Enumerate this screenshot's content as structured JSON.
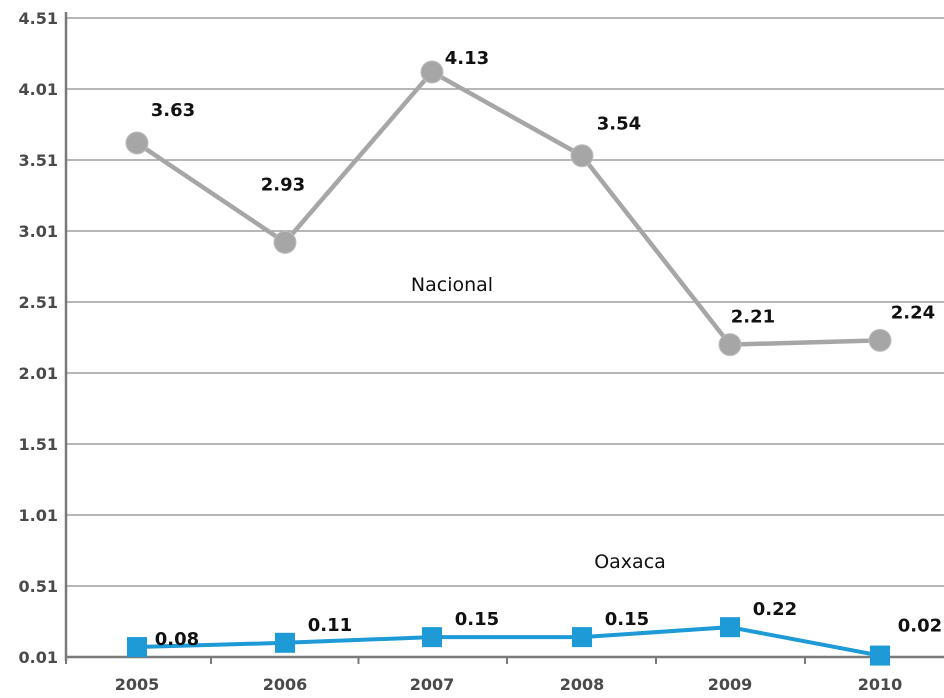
{
  "chart_data": {
    "type": "line",
    "title": "",
    "xlabel": "",
    "ylabel": "",
    "categories": [
      "2005",
      "2006",
      "2007",
      "2008",
      "2009",
      "2010"
    ],
    "yticks": [
      "0.01",
      "0.51",
      "1.01",
      "1.51",
      "2.01",
      "2.51",
      "3.01",
      "3.51",
      "4.01",
      "4.51"
    ],
    "ylim": [
      0.01,
      4.51
    ],
    "grid": true,
    "legend": "none",
    "series": [
      {
        "name": "Nacional",
        "values": [
          3.63,
          2.93,
          4.13,
          3.54,
          2.21,
          2.24
        ],
        "data_labels": [
          "3.63",
          "2.93",
          "4.13",
          "3.54",
          "2.21",
          "2.24"
        ],
        "marker": "circle",
        "color": "#a6a6a6"
      },
      {
        "name": "Oaxaca",
        "values": [
          0.08,
          0.11,
          0.15,
          0.15,
          0.22,
          0.02
        ],
        "data_labels": [
          "0.08",
          "0.11",
          "0.15",
          "0.15",
          "0.22",
          "0.02"
        ],
        "marker": "square",
        "color": "#1e9ad6"
      }
    ]
  }
}
